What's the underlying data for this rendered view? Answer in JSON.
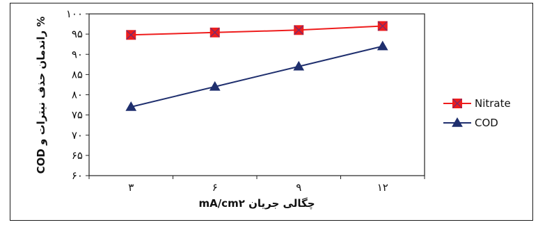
{
  "chart_data": {
    "type": "line",
    "categories": [
      "۳",
      "۶",
      "۹",
      "۱۲"
    ],
    "x": [
      3,
      6,
      9,
      12
    ],
    "series": [
      {
        "name": "Nitrate",
        "values": [
          94.8,
          95.4,
          96.0,
          97.0
        ],
        "color": "#ee1c1c",
        "marker": "square-x"
      },
      {
        "name": "COD",
        "values": [
          77.0,
          82.0,
          87.0,
          92.0
        ],
        "color": "#1f2f6e",
        "marker": "triangle"
      }
    ],
    "ylim": [
      60,
      100
    ],
    "yticks": [
      60,
      65,
      70,
      75,
      80,
      85,
      90,
      95,
      100
    ],
    "ytick_labels": [
      "۶۰",
      "۶۵",
      "۷۰",
      "۷۵",
      "۸۰",
      "۸۵",
      "۹۰",
      "۹۵",
      "۱۰۰"
    ],
    "xlabel": "چگالی جریان mA/cm۲",
    "ylabel": "% راندمان حذف نیترات و COD",
    "title": "",
    "grid": false,
    "legend_position": "right"
  }
}
